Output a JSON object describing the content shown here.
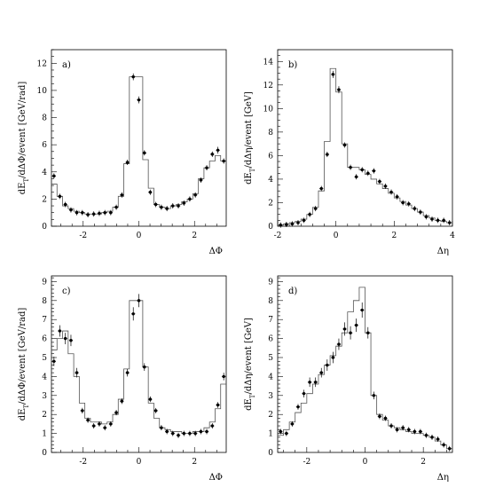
{
  "chart_data": [
    {
      "type": "scatter",
      "panel_label": "a)",
      "xlabel": "ΔΦ",
      "ylabel": "dE_T/dΔΦ/event [GeV/rad]",
      "xlim": [
        -3.14,
        3.14
      ],
      "ylim": [
        0,
        13
      ],
      "xticks": [
        -2,
        0,
        2
      ],
      "yticks": [
        0,
        2,
        4,
        6,
        8,
        10,
        12
      ],
      "tick_labels_x": [
        "-2",
        "0",
        "2"
      ],
      "tick_labels_y": [
        "0",
        "2",
        "4",
        "6",
        "8",
        "10",
        "12"
      ],
      "series": [
        {
          "kind": "points",
          "x": [
            -3.05,
            -2.84,
            -2.64,
            -2.44,
            -2.23,
            -2.03,
            -1.83,
            -1.62,
            -1.42,
            -1.22,
            -1.01,
            -0.81,
            -0.61,
            -0.41,
            -0.2,
            0.0,
            0.2,
            0.41,
            0.61,
            0.81,
            1.01,
            1.22,
            1.42,
            1.62,
            1.83,
            2.03,
            2.23,
            2.44,
            2.64,
            2.84,
            3.05
          ],
          "y": [
            3.7,
            2.2,
            1.6,
            1.2,
            1.0,
            1.0,
            0.85,
            0.9,
            0.95,
            1.0,
            1.0,
            1.4,
            2.3,
            4.7,
            11.0,
            9.3,
            5.4,
            2.5,
            1.6,
            1.4,
            1.3,
            1.5,
            1.5,
            1.7,
            2.0,
            2.3,
            3.4,
            4.3,
            5.3,
            5.6,
            4.8
          ],
          "err": [
            0.15,
            0.1,
            0.1,
            0.08,
            0.08,
            0.08,
            0.07,
            0.07,
            0.07,
            0.07,
            0.07,
            0.08,
            0.1,
            0.15,
            0.25,
            0.25,
            0.15,
            0.1,
            0.08,
            0.08,
            0.07,
            0.08,
            0.08,
            0.08,
            0.1,
            0.1,
            0.12,
            0.15,
            0.2,
            0.25,
            0.2
          ]
        },
        {
          "kind": "histogram",
          "edges": [
            -3.14,
            -2.94,
            -2.74,
            -2.54,
            -2.34,
            -2.14,
            -1.94,
            -1.74,
            -1.54,
            -1.34,
            -1.14,
            -0.94,
            -0.74,
            -0.54,
            -0.34,
            -0.14,
            0.14,
            0.34,
            0.54,
            0.74,
            0.94,
            1.14,
            1.34,
            1.54,
            1.74,
            1.94,
            2.14,
            2.34,
            2.54,
            2.74,
            2.94,
            3.14
          ],
          "values": [
            3.1,
            2.2,
            1.5,
            1.3,
            1.1,
            1.0,
            0.9,
            0.9,
            0.9,
            1.0,
            1.1,
            1.4,
            2.2,
            4.6,
            11.0,
            11.0,
            4.9,
            2.8,
            1.6,
            1.4,
            1.3,
            1.5,
            1.6,
            1.8,
            2.0,
            2.4,
            3.5,
            4.3,
            4.8,
            5.2,
            4.8
          ]
        }
      ]
    },
    {
      "type": "scatter",
      "panel_label": "b)",
      "xlabel": "Δη",
      "ylabel": "dE_T/dΔη/event [GeV]",
      "xlim": [
        -2,
        4
      ],
      "ylim": [
        0,
        15
      ],
      "xticks": [
        -2,
        0,
        2,
        4
      ],
      "yticks": [
        0,
        2,
        4,
        6,
        8,
        10,
        12,
        14
      ],
      "tick_labels_x": [
        "-2",
        "0",
        "2",
        "4"
      ],
      "tick_labels_y": [
        "0",
        "2",
        "4",
        "6",
        "8",
        "10",
        "12",
        "14"
      ],
      "series": [
        {
          "kind": "points",
          "x": [
            -1.9,
            -1.7,
            -1.5,
            -1.3,
            -1.1,
            -0.9,
            -0.7,
            -0.5,
            -0.3,
            -0.1,
            0.1,
            0.3,
            0.5,
            0.7,
            0.9,
            1.1,
            1.3,
            1.5,
            1.7,
            1.9,
            2.1,
            2.3,
            2.5,
            2.7,
            2.9,
            3.1,
            3.3,
            3.5,
            3.7,
            3.9
          ],
          "y": [
            0.1,
            0.15,
            0.2,
            0.3,
            0.5,
            1.0,
            1.5,
            3.2,
            6.1,
            12.9,
            11.6,
            6.9,
            5.0,
            4.2,
            4.8,
            4.5,
            4.7,
            3.8,
            3.4,
            2.9,
            2.5,
            2.0,
            1.9,
            1.5,
            1.2,
            0.8,
            0.6,
            0.5,
            0.5,
            0.3
          ],
          "err": [
            0.05,
            0.05,
            0.05,
            0.05,
            0.05,
            0.1,
            0.1,
            0.15,
            0.2,
            0.3,
            0.3,
            0.2,
            0.15,
            0.15,
            0.15,
            0.15,
            0.15,
            0.15,
            0.12,
            0.12,
            0.1,
            0.1,
            0.1,
            0.1,
            0.08,
            0.08,
            0.06,
            0.06,
            0.06,
            0.05
          ]
        },
        {
          "kind": "histogram",
          "edges": [
            -2,
            -1.8,
            -1.6,
            -1.4,
            -1.2,
            -1.0,
            -0.8,
            -0.6,
            -0.4,
            -0.2,
            0.0,
            0.2,
            0.4,
            0.6,
            0.8,
            1.0,
            1.2,
            1.4,
            1.6,
            1.8,
            2.0,
            2.2,
            2.4,
            2.6,
            2.8,
            3.0,
            3.2,
            3.4,
            3.6,
            3.8,
            4.0
          ],
          "values": [
            0.1,
            0.2,
            0.3,
            0.4,
            0.6,
            1.0,
            1.6,
            3.0,
            7.2,
            13.4,
            11.4,
            7.0,
            5.0,
            5.0,
            4.8,
            4.4,
            4.0,
            3.6,
            3.2,
            2.8,
            2.4,
            2.1,
            1.8,
            1.5,
            1.2,
            0.9,
            0.7,
            0.5,
            0.4,
            0.3
          ]
        }
      ]
    },
    {
      "type": "scatter",
      "panel_label": "c)",
      "xlabel": "ΔΦ",
      "ylabel": "dE_T/dΔΦ/event [GeV/rad]",
      "xlim": [
        -3.14,
        3.14
      ],
      "ylim": [
        0,
        9.3
      ],
      "xticks": [
        -2,
        0,
        2
      ],
      "yticks": [
        0,
        1,
        2,
        3,
        4,
        5,
        6,
        7,
        8,
        9
      ],
      "tick_labels_x": [
        "-2",
        "0",
        "2"
      ],
      "tick_labels_y": [
        "0",
        "1",
        "2",
        "3",
        "4",
        "5",
        "6",
        "7",
        "8",
        "9"
      ],
      "series": [
        {
          "kind": "points",
          "x": [
            -3.05,
            -2.84,
            -2.64,
            -2.44,
            -2.23,
            -2.03,
            -1.83,
            -1.62,
            -1.42,
            -1.22,
            -1.01,
            -0.81,
            -0.61,
            -0.41,
            -0.2,
            0.0,
            0.2,
            0.41,
            0.61,
            0.81,
            1.01,
            1.22,
            1.42,
            1.62,
            1.83,
            2.03,
            2.23,
            2.44,
            2.64,
            2.84,
            3.05
          ],
          "y": [
            4.8,
            6.4,
            6.0,
            5.9,
            4.2,
            2.2,
            1.7,
            1.4,
            1.5,
            1.3,
            1.5,
            2.1,
            2.7,
            4.2,
            7.3,
            8.0,
            4.5,
            2.8,
            2.2,
            1.3,
            1.1,
            1.0,
            0.9,
            1.0,
            1.0,
            1.0,
            1.1,
            1.1,
            1.4,
            2.5,
            4.0
          ],
          "err": [
            0.25,
            0.3,
            0.3,
            0.3,
            0.25,
            0.15,
            0.12,
            0.1,
            0.1,
            0.1,
            0.1,
            0.12,
            0.15,
            0.2,
            0.35,
            0.35,
            0.2,
            0.15,
            0.12,
            0.1,
            0.08,
            0.08,
            0.08,
            0.08,
            0.08,
            0.08,
            0.08,
            0.08,
            0.1,
            0.15,
            0.2
          ]
        },
        {
          "kind": "histogram",
          "edges": [
            -3.14,
            -2.94,
            -2.74,
            -2.54,
            -2.34,
            -2.14,
            -1.94,
            -1.74,
            -1.54,
            -1.34,
            -1.14,
            -0.94,
            -0.74,
            -0.54,
            -0.34,
            -0.14,
            0.14,
            0.34,
            0.54,
            0.74,
            0.94,
            1.14,
            1.34,
            1.54,
            1.74,
            1.94,
            2.14,
            2.34,
            2.54,
            2.74,
            2.94,
            3.14
          ],
          "values": [
            5.4,
            6.0,
            6.4,
            5.2,
            4.0,
            2.6,
            1.8,
            1.6,
            1.6,
            1.5,
            1.6,
            2.0,
            2.8,
            4.4,
            8.0,
            8.0,
            4.5,
            2.6,
            1.8,
            1.3,
            1.2,
            1.1,
            1.1,
            1.0,
            1.0,
            1.1,
            1.1,
            1.3,
            1.6,
            2.3,
            3.6
          ]
        }
      ]
    },
    {
      "type": "scatter",
      "panel_label": "d)",
      "xlabel": "Δη",
      "ylabel": "dE_T/dΔη/event [GeV]",
      "xlim": [
        -3,
        3
      ],
      "ylim": [
        0,
        9.3
      ],
      "xticks": [
        -2,
        0,
        2
      ],
      "yticks": [
        0,
        1,
        2,
        3,
        4,
        5,
        6,
        7,
        8,
        9
      ],
      "tick_labels_x": [
        "-2",
        "0",
        "2"
      ],
      "tick_labels_y": [
        "0",
        "1",
        "2",
        "3",
        "4",
        "5",
        "6",
        "7",
        "8",
        "9"
      ],
      "series": [
        {
          "kind": "points",
          "x": [
            -2.9,
            -2.7,
            -2.5,
            -2.3,
            -2.1,
            -1.9,
            -1.7,
            -1.5,
            -1.3,
            -1.1,
            -0.9,
            -0.7,
            -0.5,
            -0.3,
            -0.1,
            0.1,
            0.3,
            0.5,
            0.7,
            0.9,
            1.1,
            1.3,
            1.5,
            1.7,
            1.9,
            2.1,
            2.3,
            2.5,
            2.7,
            2.9
          ],
          "y": [
            1.1,
            1.0,
            1.5,
            2.4,
            3.1,
            3.7,
            3.7,
            4.2,
            4.6,
            5.0,
            5.7,
            6.5,
            6.3,
            6.7,
            7.5,
            6.3,
            3.0,
            1.9,
            1.8,
            1.4,
            1.2,
            1.3,
            1.2,
            1.1,
            1.1,
            0.9,
            0.8,
            0.7,
            0.4,
            0.2
          ],
          "err": [
            0.1,
            0.1,
            0.12,
            0.15,
            0.2,
            0.25,
            0.25,
            0.25,
            0.3,
            0.3,
            0.3,
            0.35,
            0.35,
            0.35,
            0.4,
            0.3,
            0.2,
            0.15,
            0.12,
            0.1,
            0.1,
            0.1,
            0.1,
            0.1,
            0.1,
            0.08,
            0.08,
            0.08,
            0.06,
            0.05
          ]
        },
        {
          "kind": "histogram",
          "edges": [
            -3.0,
            -2.8,
            -2.6,
            -2.4,
            -2.2,
            -2.0,
            -1.8,
            -1.6,
            -1.4,
            -1.2,
            -1.0,
            -0.8,
            -0.6,
            -0.4,
            -0.2,
            0.0,
            0.2,
            0.4,
            0.6,
            0.8,
            1.0,
            1.2,
            1.4,
            1.6,
            1.8,
            2.0,
            2.2,
            2.4,
            2.6,
            2.8,
            3.0
          ],
          "values": [
            0.9,
            1.2,
            1.6,
            2.1,
            2.6,
            3.1,
            3.6,
            4.1,
            4.6,
            5.1,
            5.6,
            6.3,
            7.4,
            8.0,
            8.7,
            6.3,
            3.0,
            2.0,
            1.7,
            1.4,
            1.3,
            1.2,
            1.1,
            1.0,
            1.0,
            0.9,
            0.8,
            0.6,
            0.4,
            0.2
          ]
        }
      ]
    }
  ]
}
